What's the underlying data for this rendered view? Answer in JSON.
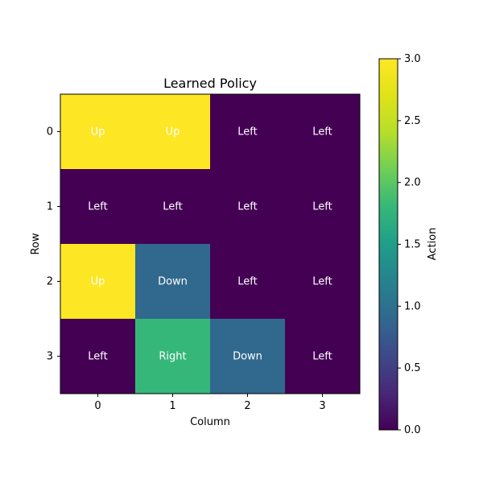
{
  "chart_data": {
    "type": "heatmap",
    "title": "Learned Policy",
    "xlabel": "Column",
    "ylabel": "Row",
    "x_ticks": [
      "0",
      "1",
      "2",
      "3"
    ],
    "y_ticks": [
      "0",
      "1",
      "2",
      "3"
    ],
    "values": [
      [
        3,
        3,
        0,
        0
      ],
      [
        0,
        0,
        0,
        0
      ],
      [
        3,
        1,
        0,
        0
      ],
      [
        0,
        2,
        1,
        0
      ]
    ],
    "cell_labels": [
      [
        "Up",
        "Up",
        "Left",
        "Left"
      ],
      [
        "Left",
        "Left",
        "Left",
        "Left"
      ],
      [
        "Up",
        "Down",
        "Left",
        "Left"
      ],
      [
        "Left",
        "Right",
        "Down",
        "Left"
      ]
    ],
    "colorbar": {
      "label": "Action",
      "range": [
        0,
        3
      ],
      "ticks": [
        "0.0",
        "0.5",
        "1.0",
        "1.5",
        "2.0",
        "2.5",
        "3.0"
      ],
      "colormap": "viridis"
    },
    "colors": {
      "0": "#440154",
      "1": "#31688e",
      "2": "#35b779",
      "3": "#fde725",
      "label_text": "#ffffff"
    },
    "grid": false
  }
}
